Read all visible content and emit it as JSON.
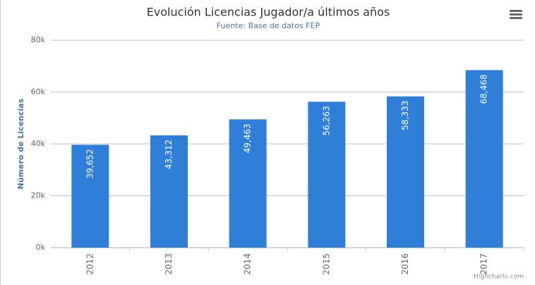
{
  "chart_data": {
    "type": "bar",
    "title": "Evolución Licencias Jugador/a últimos años",
    "subtitle": "Fuente: Base de datos FEP",
    "y_label": "Número de Licencias",
    "categories": [
      "2012",
      "2013",
      "2014",
      "2015",
      "2016",
      "2017"
    ],
    "values": [
      39652,
      43312,
      49463,
      56263,
      58333,
      68468
    ],
    "value_labels": [
      "39,652",
      "43,312",
      "49,463",
      "56,263",
      "58,333",
      "68,468"
    ],
    "color": "#2f7ed8",
    "ylim": [
      0,
      80000
    ],
    "yticks": [
      {
        "value": 0,
        "label": "0k"
      },
      {
        "value": 20000,
        "label": "20k"
      },
      {
        "value": 40000,
        "label": "40k"
      },
      {
        "value": 60000,
        "label": "60k"
      },
      {
        "value": 80000,
        "label": "80k"
      }
    ],
    "grid": true,
    "credits": "Highcharts.com"
  }
}
